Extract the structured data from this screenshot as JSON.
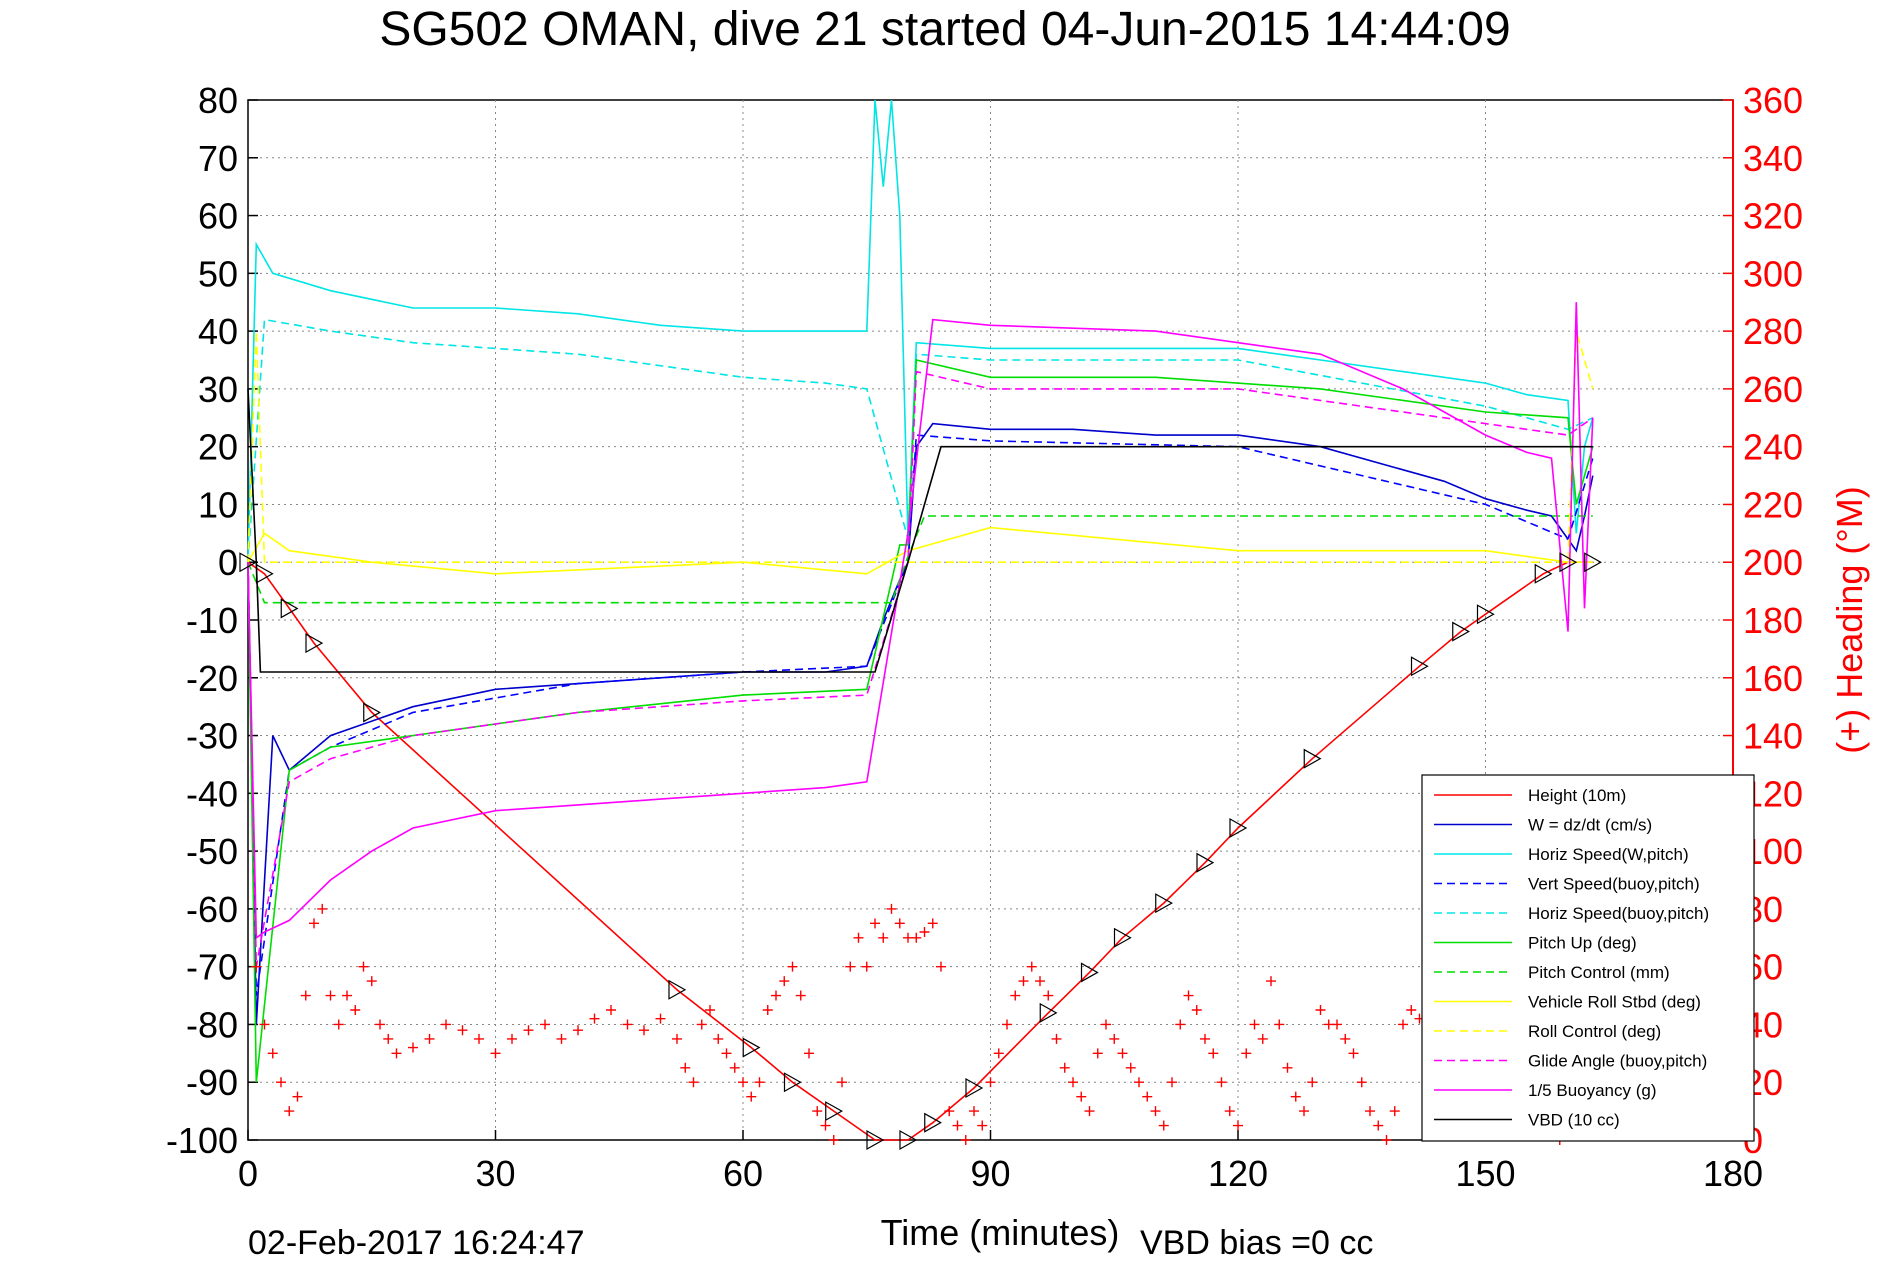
{
  "chart_data": {
    "type": "line",
    "title": "SG502 OMAN, dive 21 started 04-Jun-2015 14:44:09",
    "xlabel": "Time (minutes)",
    "ylabel_right": "(+) Heading (°M)",
    "footer_date": "02-Feb-2017 16:24:47",
    "footer_bias": "VBD bias =0 cc",
    "xlim": [
      0,
      180
    ],
    "ylim": [
      -100,
      80
    ],
    "ylim_right": [
      0,
      360
    ],
    "xticks": [
      "0",
      "30",
      "60",
      "90",
      "120",
      "150",
      "180"
    ],
    "yticks": [
      "80",
      "70",
      "60",
      "50",
      "40",
      "30",
      "20",
      "10",
      "0",
      "-10",
      "-20",
      "-30",
      "-40",
      "-50",
      "-60",
      "-70",
      "-80",
      "-90",
      "-100"
    ],
    "yticks_right": [
      "360",
      "340",
      "320",
      "300",
      "280",
      "260",
      "240",
      "220",
      "200",
      "180",
      "160",
      "140",
      "120",
      "100",
      "80",
      "60",
      "40",
      "20",
      "0"
    ],
    "grid": true,
    "legend_position": "bottom-right",
    "series": [
      {
        "name": "Height (10m)",
        "color": "#ff0000",
        "dash": "solid",
        "x": [
          0,
          2,
          5,
          8,
          15,
          52,
          61,
          66,
          71,
          76,
          80,
          83,
          88,
          97,
          102,
          106,
          111,
          116,
          120,
          129,
          142,
          147,
          150,
          157,
          160,
          163
        ],
        "y": [
          0,
          -2,
          -8,
          -14,
          -26,
          -74,
          -84,
          -90,
          -95,
          -100,
          -100,
          -97,
          -91,
          -78,
          -71,
          -65,
          -59,
          -52,
          -46,
          -34,
          -18,
          -12,
          -9,
          -2,
          0,
          0
        ]
      },
      {
        "name": "W = dz/dt (cm/s)",
        "color": "#0000cc",
        "dash": "solid",
        "x": [
          0,
          1,
          3,
          5,
          10,
          20,
          30,
          40,
          50,
          60,
          70,
          75,
          77,
          79,
          80,
          81,
          83,
          90,
          100,
          110,
          120,
          130,
          140,
          145,
          150,
          155,
          158,
          160,
          161,
          162,
          163
        ],
        "y": [
          0,
          -80,
          -30,
          -36,
          -30,
          -25,
          -22,
          -21,
          -20,
          -19,
          -19,
          -18,
          -10,
          -3,
          0,
          20,
          24,
          23,
          23,
          22,
          22,
          20,
          16,
          14,
          11,
          9,
          8,
          4,
          2,
          8,
          15
        ]
      },
      {
        "name": "Horiz Speed(W,pitch)",
        "color": "#00e5e5",
        "dash": "solid",
        "x": [
          0,
          1,
          3,
          10,
          20,
          30,
          40,
          50,
          60,
          70,
          75,
          76,
          77,
          78,
          79,
          80,
          81,
          90,
          100,
          110,
          120,
          130,
          140,
          150,
          155,
          160,
          161,
          162,
          163
        ],
        "y": [
          0,
          55,
          50,
          47,
          44,
          44,
          43,
          41,
          40,
          40,
          40,
          80,
          65,
          80,
          60,
          4,
          38,
          37,
          37,
          37,
          37,
          35,
          33,
          31,
          29,
          28,
          5,
          20,
          25
        ]
      },
      {
        "name": "Vert Speed(buoy,pitch)",
        "color": "#0000ff",
        "dash": "dashed",
        "x": [
          0,
          1,
          5,
          10,
          20,
          40,
          60,
          75,
          80,
          81,
          90,
          120,
          150,
          160,
          163
        ],
        "y": [
          0,
          -75,
          -36,
          -32,
          -26,
          -21,
          -19,
          -18,
          0,
          22,
          21,
          20,
          10,
          4,
          18
        ]
      },
      {
        "name": "Horiz Speed(buoy,pitch)",
        "color": "#00e5e5",
        "dash": "dashed",
        "x": [
          0,
          2,
          10,
          20,
          40,
          60,
          70,
          75,
          80,
          81,
          90,
          120,
          150,
          160,
          163
        ],
        "y": [
          0,
          42,
          40,
          38,
          36,
          32,
          31,
          30,
          4,
          36,
          35,
          35,
          27,
          23,
          25
        ]
      },
      {
        "name": "Pitch Up (deg)",
        "color": "#00dd00",
        "dash": "solid",
        "x": [
          0,
          1,
          5,
          10,
          20,
          40,
          60,
          75,
          79,
          80,
          81,
          90,
          110,
          130,
          150,
          160,
          161,
          163
        ],
        "y": [
          0,
          -90,
          -36,
          -32,
          -30,
          -26,
          -23,
          -22,
          3,
          3,
          35,
          32,
          32,
          30,
          26,
          25,
          10,
          20
        ]
      },
      {
        "name": "Pitch Control (mm)",
        "color": "#00dd00",
        "dash": "dashed",
        "x": [
          0,
          2,
          78,
          80,
          82,
          163
        ],
        "y": [
          0,
          -7,
          -7,
          1,
          8,
          8
        ]
      },
      {
        "name": "Vehicle Roll Stbd (deg)",
        "color": "#ffff00",
        "dash": "solid",
        "x": [
          0,
          2,
          5,
          10,
          15,
          30,
          60,
          75,
          80,
          90,
          120,
          150,
          160,
          163
        ],
        "y": [
          0,
          5,
          2,
          1,
          0,
          -2,
          0,
          -2,
          2,
          6,
          2,
          2,
          0,
          0
        ]
      },
      {
        "name": "Roll Control (deg)",
        "color": "#ffff00",
        "dash": "dashed",
        "x": [
          0,
          1,
          2,
          160,
          161,
          163
        ],
        "y": [
          0,
          40,
          0,
          0,
          40,
          30
        ]
      },
      {
        "name": "Glide Angle (buoy,pitch)",
        "color": "#ff00ff",
        "dash": "dashed",
        "x": [
          0,
          1,
          5,
          10,
          20,
          40,
          60,
          75,
          80,
          81,
          90,
          120,
          150,
          160,
          163
        ],
        "y": [
          0,
          -70,
          -38,
          -34,
          -30,
          -26,
          -24,
          -23,
          0,
          33,
          30,
          30,
          24,
          22,
          25
        ]
      },
      {
        "name": "1/5 Buoyancy (g)",
        "color": "#ff00ff",
        "dash": "solid",
        "x": [
          0,
          1,
          2,
          5,
          10,
          15,
          20,
          30,
          40,
          50,
          60,
          70,
          75,
          80,
          83,
          90,
          110,
          130,
          140,
          150,
          155,
          158,
          160,
          161,
          162,
          163
        ],
        "y": [
          0,
          -65,
          -64,
          -62,
          -55,
          -50,
          -46,
          -43,
          -42,
          -41,
          -40,
          -39,
          -38,
          5,
          42,
          41,
          40,
          36,
          30,
          22,
          19,
          18,
          -12,
          45,
          -8,
          25
        ]
      },
      {
        "name": "VBD (10 cc)",
        "color": "#000000",
        "dash": "solid",
        "x": [
          0,
          1,
          1.5,
          75,
          76,
          80,
          82,
          84,
          163
        ],
        "y": [
          30,
          0,
          -19,
          -19,
          -19,
          0,
          10,
          20,
          20
        ]
      }
    ],
    "heading": {
      "name": "(+) Heading",
      "color": "#ff0000",
      "marker": "+",
      "axis": "right",
      "x": [
        1,
        2,
        3,
        4,
        5,
        6,
        7,
        8,
        9,
        10,
        11,
        12,
        13,
        14,
        15,
        16,
        17,
        18,
        20,
        22,
        24,
        26,
        28,
        30,
        32,
        34,
        36,
        38,
        40,
        42,
        44,
        46,
        48,
        50,
        52,
        53,
        54,
        55,
        56,
        57,
        58,
        59,
        60,
        61,
        62,
        63,
        64,
        65,
        66,
        67,
        68,
        69,
        70,
        71,
        72,
        73,
        74,
        75,
        76,
        77,
        78,
        79,
        80,
        81,
        82,
        83,
        84,
        85,
        86,
        87,
        88,
        89,
        90,
        91,
        92,
        93,
        94,
        95,
        96,
        97,
        98,
        99,
        100,
        101,
        102,
        103,
        104,
        105,
        106,
        107,
        108,
        109,
        110,
        111,
        112,
        113,
        114,
        115,
        116,
        117,
        118,
        119,
        120,
        121,
        122,
        123,
        124,
        125,
        126,
        127,
        128,
        129,
        130,
        131,
        132,
        133,
        134,
        135,
        136,
        137,
        138,
        139,
        140,
        141,
        142,
        143,
        144,
        145,
        146,
        147,
        148,
        149,
        150,
        151,
        152,
        153,
        154,
        155,
        156,
        157,
        158,
        159,
        160,
        161,
        162,
        163
      ],
      "y": [
        60,
        40,
        30,
        20,
        10,
        15,
        50,
        75,
        80,
        50,
        40,
        50,
        45,
        60,
        55,
        40,
        35,
        30,
        32,
        35,
        40,
        38,
        35,
        30,
        35,
        38,
        40,
        35,
        38,
        42,
        45,
        40,
        38,
        42,
        35,
        25,
        20,
        40,
        45,
        35,
        30,
        25,
        20,
        15,
        20,
        45,
        50,
        55,
        60,
        50,
        30,
        10,
        5,
        0,
        20,
        60,
        70,
        60,
        75,
        70,
        80,
        75,
        70,
        70,
        72,
        75,
        60,
        10,
        5,
        0,
        10,
        5,
        20,
        30,
        40,
        50,
        55,
        60,
        55,
        50,
        35,
        25,
        20,
        15,
        10,
        30,
        40,
        35,
        30,
        25,
        20,
        15,
        10,
        5,
        20,
        40,
        50,
        45,
        35,
        30,
        20,
        10,
        5,
        30,
        40,
        35,
        55,
        40,
        25,
        15,
        10,
        20,
        45,
        40,
        40,
        35,
        30,
        20,
        10,
        5,
        0,
        10,
        40,
        45,
        42,
        40,
        45,
        40,
        38,
        35,
        30,
        20,
        15,
        10,
        5,
        20,
        40,
        35,
        30,
        30,
        5,
        0,
        15,
        25,
        35,
        40
      ]
    }
  }
}
